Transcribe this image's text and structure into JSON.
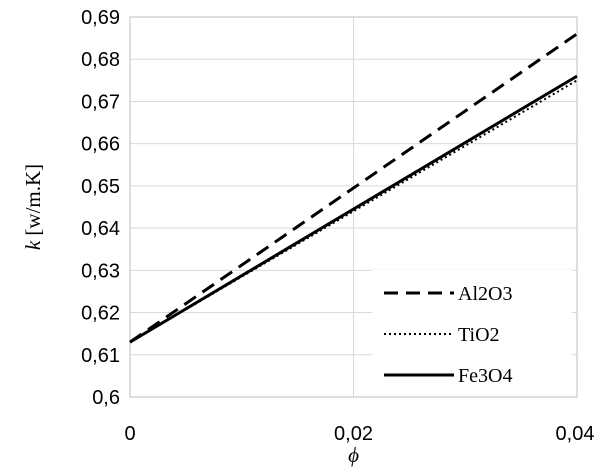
{
  "chart_data": {
    "type": "line",
    "xlabel": "ϕ",
    "ylabel_var": "k",
    "ylabel_unit": " [w/m.K]",
    "xlim": [
      0,
      0.04
    ],
    "ylim": [
      0.6,
      0.69
    ],
    "xticks": [
      0,
      0.02,
      0.04
    ],
    "xtick_labels": [
      "0",
      "0,02",
      "0,04"
    ],
    "yticks": [
      0.6,
      0.61,
      0.62,
      0.63,
      0.64,
      0.65,
      0.66,
      0.67,
      0.68,
      0.69
    ],
    "ytick_labels": [
      "0,6",
      "0,61",
      "0,62",
      "0,63",
      "0,64",
      "0,65",
      "0,66",
      "0,67",
      "0,68",
      "0,69"
    ],
    "grid": true,
    "legend_position": "bottom-right",
    "series": [
      {
        "name": "Al2O3",
        "style": "dashed",
        "x": [
          0,
          0.04
        ],
        "y": [
          0.613,
          0.686
        ]
      },
      {
        "name": "TiO2",
        "style": "dotted",
        "x": [
          0,
          0.04
        ],
        "y": [
          0.613,
          0.675
        ]
      },
      {
        "name": "Fe3O4",
        "style": "solid",
        "x": [
          0,
          0.04
        ],
        "y": [
          0.613,
          0.676
        ]
      }
    ]
  }
}
